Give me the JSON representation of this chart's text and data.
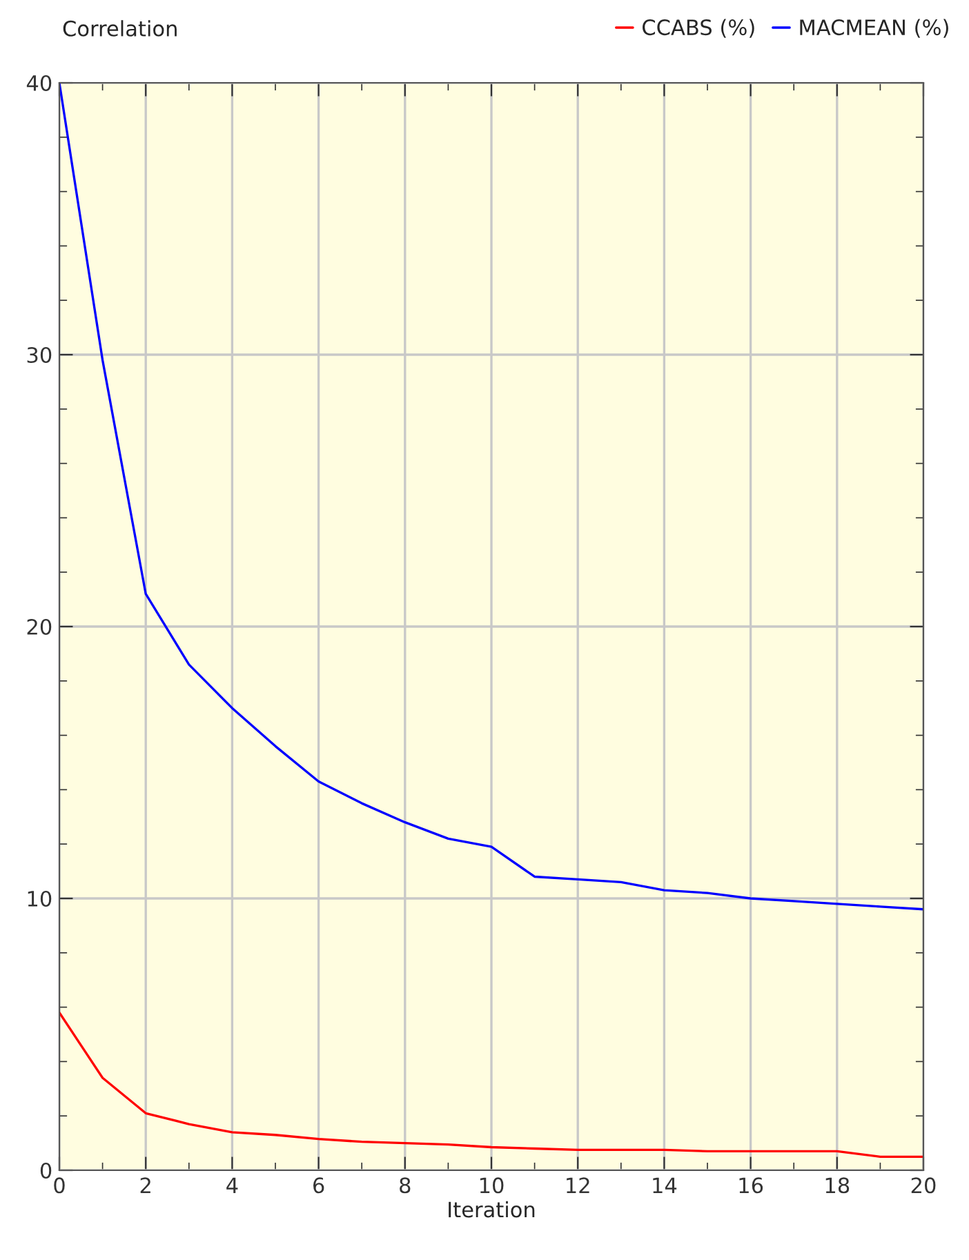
{
  "chart_data": {
    "type": "line",
    "ylabel": "Correlation",
    "xlabel": "Iteration",
    "x": [
      0,
      1,
      2,
      3,
      4,
      5,
      6,
      7,
      8,
      9,
      10,
      11,
      12,
      13,
      14,
      15,
      16,
      17,
      18,
      19,
      20
    ],
    "series": [
      {
        "name": "CCABS (%)",
        "color": "#ff0000",
        "values": [
          5.8,
          3.4,
          2.1,
          1.7,
          1.4,
          1.3,
          1.15,
          1.05,
          1.0,
          0.95,
          0.85,
          0.8,
          0.75,
          0.75,
          0.75,
          0.7,
          0.7,
          0.7,
          0.7,
          0.5,
          0.5
        ]
      },
      {
        "name": "MACMEAN (%)",
        "color": "#0000ff",
        "values": [
          40,
          29.8,
          21.2,
          18.6,
          17.0,
          15.6,
          14.3,
          13.5,
          12.8,
          12.2,
          11.9,
          10.8,
          10.7,
          10.6,
          10.3,
          10.2,
          10.0,
          9.9,
          9.8,
          9.7,
          9.6
        ]
      }
    ],
    "xlim": [
      0,
      20
    ],
    "xticks": [
      0,
      2,
      4,
      6,
      8,
      10,
      12,
      14,
      16,
      18,
      20
    ],
    "ylim": [
      0,
      40
    ],
    "yticks": [
      0,
      10,
      20,
      30,
      40
    ],
    "grid": true,
    "legend": "top right",
    "marker": "none",
    "line_style": "solid"
  }
}
